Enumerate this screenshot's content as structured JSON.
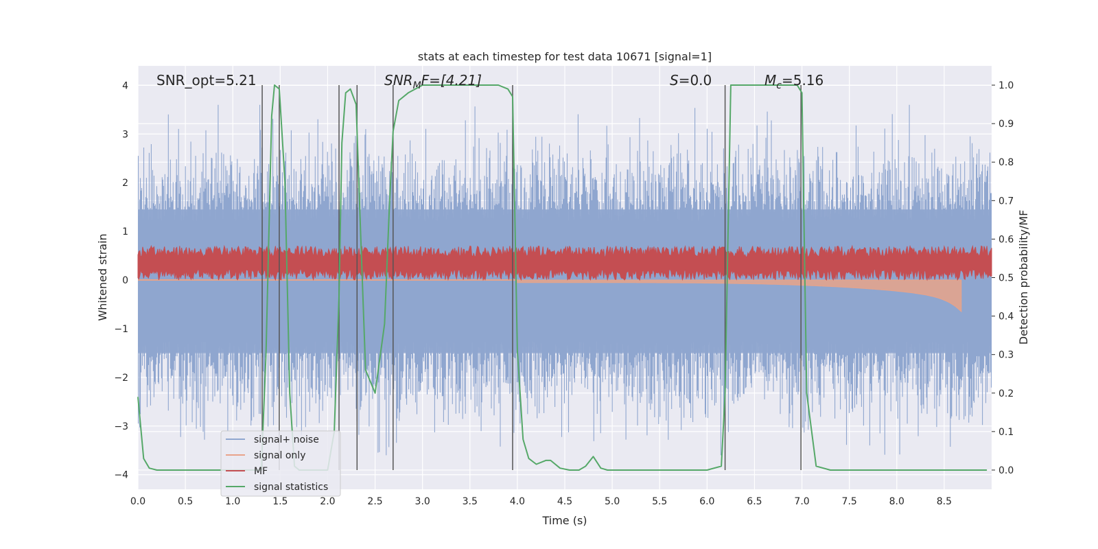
{
  "chart_data": {
    "type": "line",
    "title": "stats at each timestep for test data 10671 [signal=1]",
    "xlabel": "Time (s)",
    "ylabel_left": "Whitened strain",
    "ylabel_right": "Detection probability/MF",
    "xlim": [
      0.0,
      9.0
    ],
    "ylim_left": [
      -4.3,
      4.4
    ],
    "ylim_right": [
      -0.05,
      1.05
    ],
    "x_ticks": [
      "0.0",
      "0.5",
      "1.0",
      "1.5",
      "2.0",
      "2.5",
      "3.0",
      "3.5",
      "4.0",
      "4.5",
      "5.0",
      "5.5",
      "6.0",
      "6.5",
      "7.0",
      "7.5",
      "8.0",
      "8.5"
    ],
    "y_ticks_left": [
      "4",
      "3",
      "2",
      "1",
      "0",
      "−1",
      "−2",
      "−3",
      "−4"
    ],
    "y_ticks_right": [
      "1.0",
      "0.9",
      "0.8",
      "0.7",
      "0.6",
      "0.5",
      "0.4",
      "0.3",
      "0.2",
      "0.1",
      "0.0"
    ],
    "annotations": {
      "snr_opt": "SNR_opt=5.21",
      "snr_mf_base": "SNR",
      "snr_mf_sub": "M",
      "snr_mf_rest": "F=[4.21]",
      "s_base": "S",
      "s_rest": "=0.0",
      "mc_base": "M",
      "mc_sub": "c",
      "mc_rest": "=5.16"
    },
    "legend": {
      "position": "lower-left",
      "entries": [
        "signal+ noise",
        "signal only",
        "MF",
        "signal statistics"
      ]
    },
    "series_colors": {
      "noise": "#8fa6cf",
      "signal": "#e8a38a",
      "mf": "#c44e52",
      "stats": "#55a868",
      "vlines": "#555555"
    },
    "noise_band": {
      "upper_envelope_typical": 2.2,
      "lower_envelope_typical": -2.3,
      "peak_abs": 3.6
    },
    "signal_chirp": {
      "start_time": 4.0,
      "end_time": 8.68,
      "min_value": -0.65
    },
    "mf_band": {
      "center": 0.35,
      "half_width": 0.35
    },
    "vertical_lines": [
      1.31,
      1.49,
      2.12,
      2.31,
      2.69,
      3.95,
      6.19,
      6.99
    ],
    "signal_statistics": {
      "x": [
        0.0,
        0.06,
        0.12,
        0.2,
        0.4,
        0.8,
        1.0,
        1.2,
        1.3,
        1.35,
        1.41,
        1.44,
        1.49,
        1.55,
        1.6,
        1.65,
        1.7,
        1.8,
        2.0,
        2.07,
        2.12,
        2.15,
        2.19,
        2.24,
        2.3,
        2.35,
        2.4,
        2.5,
        2.6,
        2.65,
        2.69,
        2.75,
        2.85,
        3.0,
        3.2,
        3.5,
        3.8,
        3.9,
        3.95,
        4.0,
        4.06,
        4.12,
        4.2,
        4.3,
        4.35,
        4.45,
        4.55,
        4.65,
        4.72,
        4.8,
        4.88,
        4.95,
        5.1,
        5.5,
        6.0,
        6.15,
        6.19,
        6.25,
        6.3,
        6.6,
        6.95,
        7.0,
        7.05,
        7.15,
        7.3,
        8.0,
        8.95
      ],
      "y": [
        0.19,
        0.03,
        0.005,
        0.0,
        0.0,
        0.0,
        0.0,
        0.0,
        0.0,
        0.3,
        0.92,
        1.0,
        0.99,
        0.75,
        0.2,
        0.01,
        0.0,
        0.0,
        0.0,
        0.1,
        0.45,
        0.85,
        0.98,
        0.99,
        0.95,
        0.6,
        0.26,
        0.2,
        0.38,
        0.68,
        0.88,
        0.96,
        0.98,
        1.0,
        1.0,
        1.0,
        1.0,
        0.99,
        0.97,
        0.31,
        0.08,
        0.03,
        0.015,
        0.025,
        0.025,
        0.005,
        0.0,
        0.0,
        0.01,
        0.035,
        0.005,
        0.0,
        0.0,
        0.0,
        0.0,
        0.01,
        0.2,
        1.0,
        1.0,
        1.0,
        1.0,
        0.98,
        0.2,
        0.01,
        0.0,
        0.0,
        0.0
      ]
    }
  }
}
